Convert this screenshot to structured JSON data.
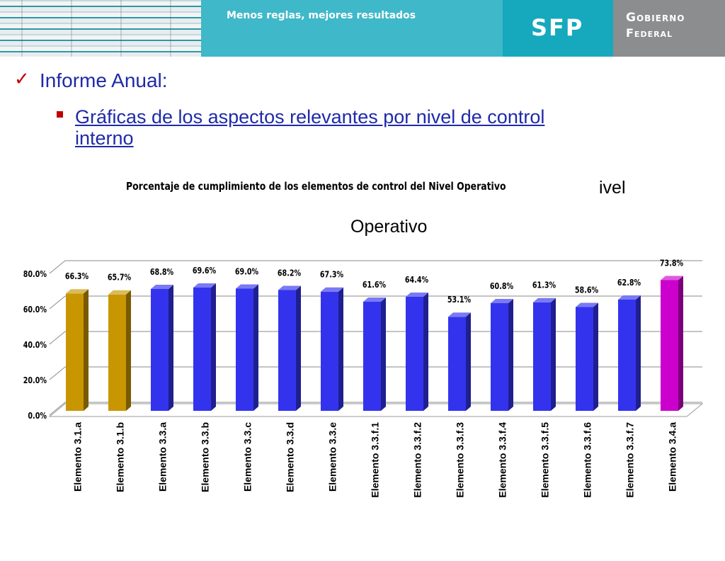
{
  "header": {
    "slogan": "Menos reglas, mejores resultados",
    "sfp_logo": "SFP",
    "gov_logo_line1": "Gobierno",
    "gov_logo_line2": "Federal"
  },
  "content": {
    "check_icon": "✓",
    "heading": "Informe Anual:",
    "subheading": "Gráficas de los aspectos relevantes por nivel de control interno",
    "fragment_right": "ivel",
    "fragment_center": "Operativo"
  },
  "colors": {
    "gold": "#c89600",
    "blue": "#3333ee",
    "magenta": "#cc00cc",
    "heading": "#1f2aa8",
    "bullet_red": "#c00000"
  },
  "chart_data": {
    "type": "bar",
    "title": "Porcentaje de cumplimiento de los elementos de control del Nivel Operativo",
    "categories": [
      "Elemento 3.1.a",
      "Elemento 3.1.b",
      "Elemento 3.3.a",
      "Elemento 3.3.b",
      "Elemento 3.3.c",
      "Elemento 3.3.d",
      "Elemento 3.3.e",
      "Elemento 3.3.f.1",
      "Elemento 3.3.f.2",
      "Elemento 3.3.f.3",
      "Elemento 3.3.f.4",
      "Elemento 3.3.f.5",
      "Elemento 3.3.f.6",
      "Elemento 3.3.f.7",
      "Elemento 3.4.a"
    ],
    "values": [
      66.3,
      65.7,
      68.8,
      69.6,
      69.0,
      68.2,
      67.3,
      61.6,
      64.4,
      53.1,
      60.8,
      61.3,
      58.6,
      62.8,
      73.8
    ],
    "data_labels": [
      "66.3%",
      "65.7%",
      "68.8%",
      "69.6%",
      "69.0%",
      "68.2%",
      "67.3%",
      "61.6%",
      "64.4%",
      "53.1%",
      "60.8%",
      "61.3%",
      "58.6%",
      "62.8%",
      "73.8%"
    ],
    "bar_colors": [
      "gold",
      "gold",
      "blue",
      "blue",
      "blue",
      "blue",
      "blue",
      "blue",
      "blue",
      "blue",
      "blue",
      "blue",
      "blue",
      "blue",
      "magenta"
    ],
    "yticks": [
      "0.0%",
      "20.0%",
      "40.0%",
      "60.0%",
      "80.0%"
    ],
    "ylim": [
      0,
      80
    ],
    "grid": true,
    "legend": "none"
  }
}
